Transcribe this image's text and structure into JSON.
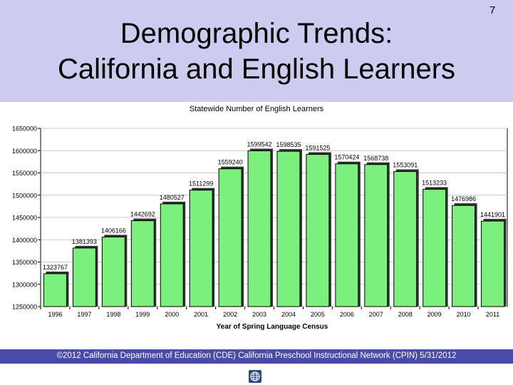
{
  "slide": {
    "title": "Demographic Trends:\nCalifornia and English Learners",
    "number": "7",
    "footer": "©2012 California Department of Education (CDE) California Preschool Instructional Network (CPIN)   5/31/2012"
  },
  "colors": {
    "header_bg": "#ccccf0",
    "bar": "#7cf07c",
    "footer_bg": "#4a4aa8"
  },
  "icons": {
    "footer_logo": "globe-icon"
  },
  "chart_data": {
    "type": "bar",
    "title": "Statewide Number of English Learners",
    "xlabel": "Year of Spring Language Census",
    "ylabel": "",
    "ylim": [
      1250000,
      1650000
    ],
    "yticks": [
      1250000,
      1300000,
      1350000,
      1400000,
      1450000,
      1500000,
      1550000,
      1600000,
      1650000
    ],
    "grid": true,
    "legend": "none",
    "categories": [
      "1996",
      "1997",
      "1998",
      "1999",
      "2000",
      "2001",
      "2002",
      "2003",
      "2004",
      "2005",
      "2006",
      "2007",
      "2008",
      "2009",
      "2010",
      "2011"
    ],
    "values": [
      1323767,
      1381393,
      1406166,
      1442692,
      1480527,
      1511299,
      1559240,
      1599542,
      1598535,
      1591525,
      1570424,
      1568738,
      1553091,
      1513233,
      1476986,
      1441901
    ]
  }
}
